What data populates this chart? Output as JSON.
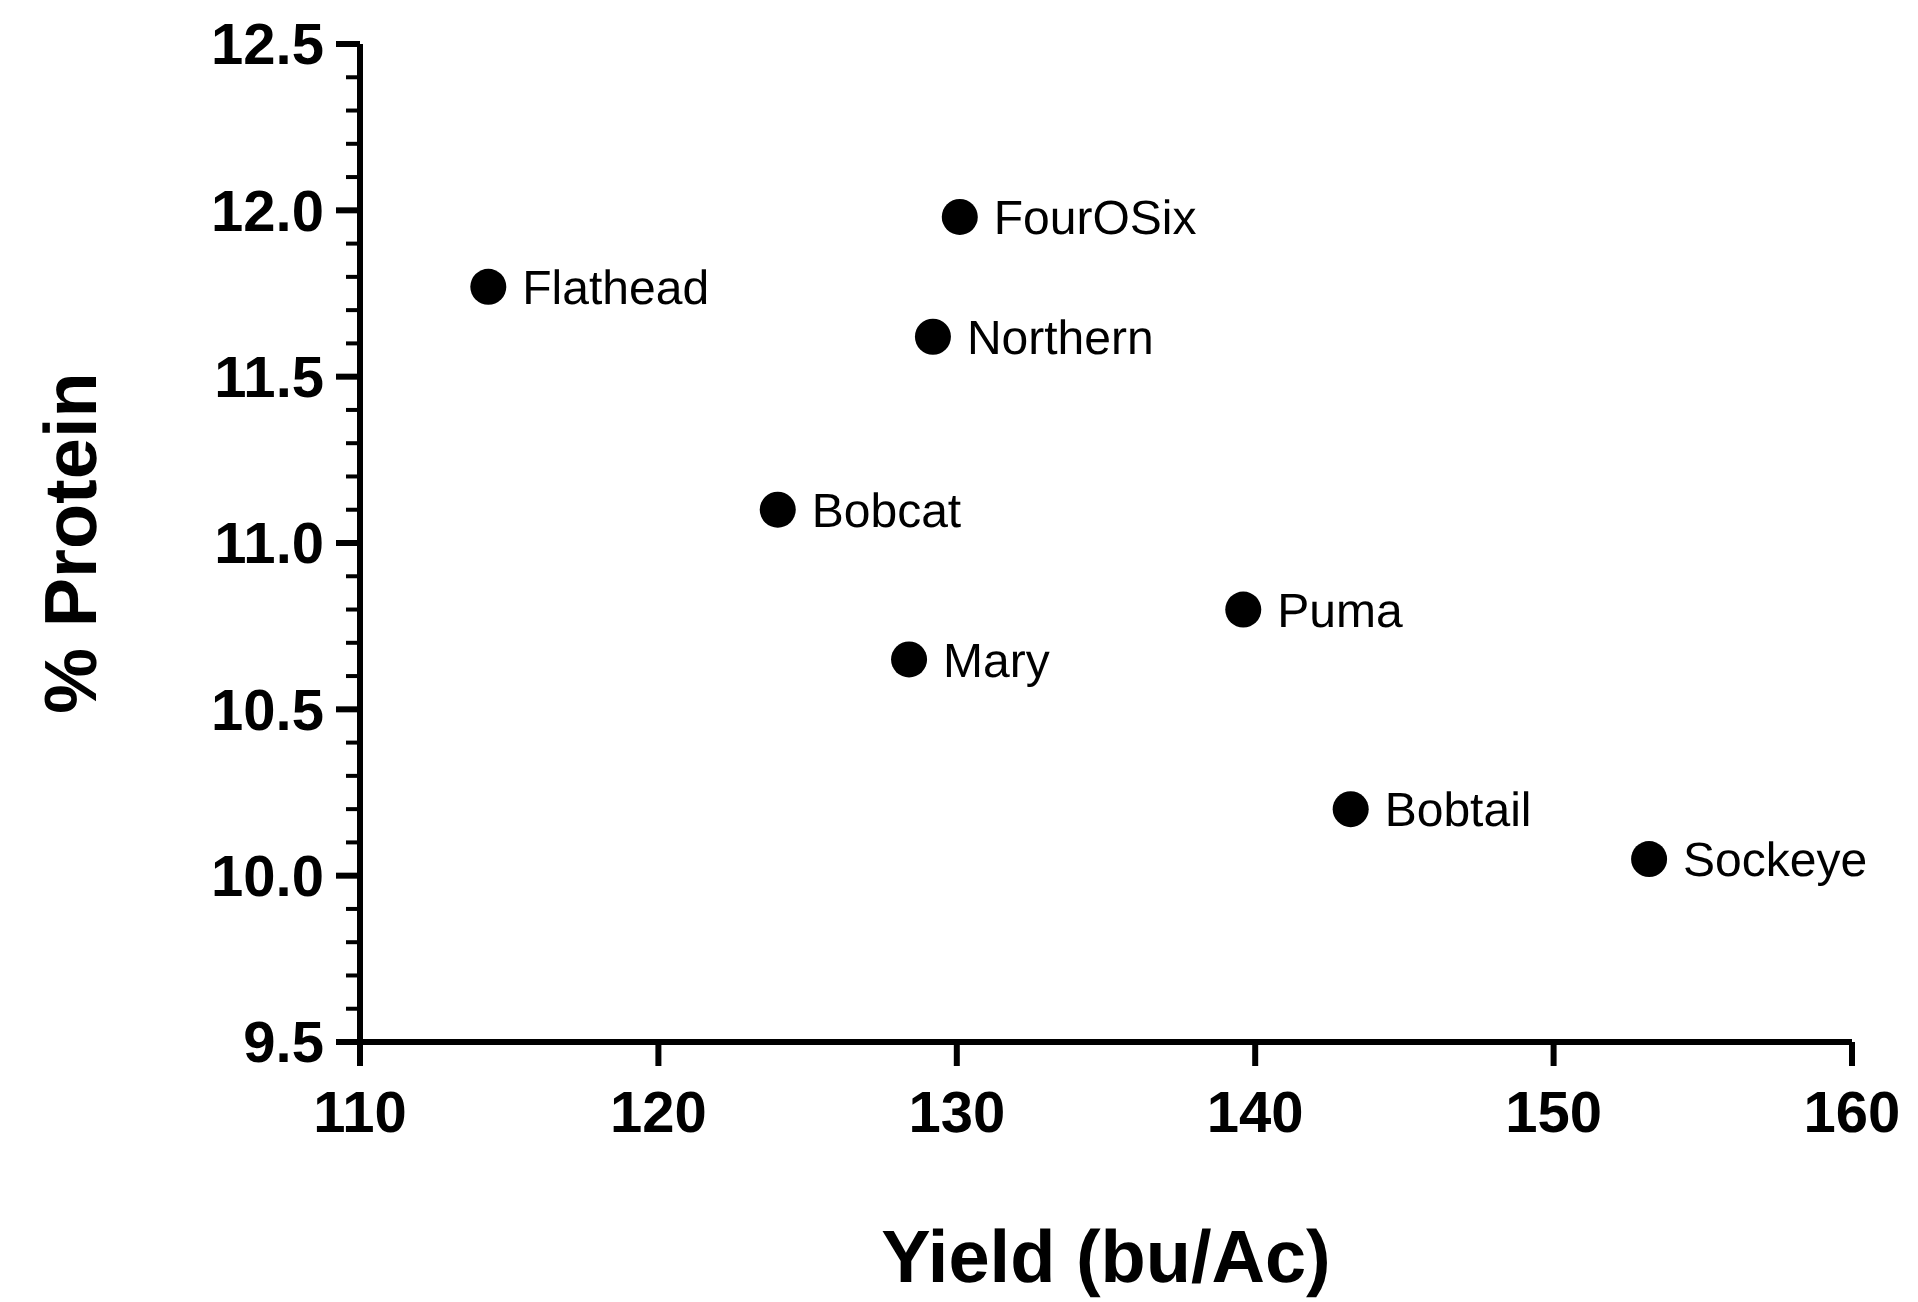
{
  "chart_data": {
    "type": "scatter",
    "xlabel": "Yield (bu/Ac)",
    "ylabel": "% Protein",
    "x": [
      114.3,
      130.1,
      129.2,
      124.0,
      128.4,
      139.6,
      143.2,
      153.2
    ],
    "values": [
      11.77,
      11.98,
      11.62,
      11.1,
      10.65,
      10.8,
      10.2,
      10.05
    ],
    "color": "#000000",
    "marker": "circle",
    "grid": false,
    "xlim": [
      110,
      160
    ],
    "xticks": [
      110,
      120,
      130,
      140,
      150,
      160
    ],
    "ylim": [
      9.5,
      12.5
    ],
    "yticks": [
      9.5,
      {
        "value": 9.6,
        "label": null
      },
      {
        "value": 9.7,
        "label": null
      },
      {
        "value": 9.8,
        "label": null
      },
      {
        "value": 9.9,
        "label": null
      },
      "10.0",
      {
        "value": 10.1,
        "label": null
      },
      {
        "value": 10.2,
        "label": null
      },
      {
        "value": 10.3,
        "label": null
      },
      {
        "value": 10.4,
        "label": null
      },
      10.5,
      {
        "value": 10.6,
        "label": null
      },
      {
        "value": 10.7,
        "label": null
      },
      {
        "value": 10.8,
        "label": null
      },
      {
        "value": 10.9,
        "label": null
      },
      "11.0",
      {
        "value": 11.1,
        "label": null
      },
      {
        "value": 11.2,
        "label": null
      },
      {
        "value": 11.3,
        "label": null
      },
      {
        "value": 11.4,
        "label": null
      },
      11.5,
      {
        "value": 11.6,
        "label": null
      },
      {
        "value": 11.7,
        "label": null
      },
      {
        "value": 11.8,
        "label": null
      },
      {
        "value": 11.9,
        "label": null
      },
      "12.0",
      {
        "value": 12.1,
        "label": null
      },
      {
        "value": 12.2,
        "label": null
      },
      {
        "value": 12.3,
        "label": null
      },
      {
        "value": 12.4,
        "label": null
      },
      12.5
    ],
    "annotations": [
      {
        "text": "Flathead",
        "x": 114.3,
        "y": 11.77
      },
      {
        "text": "FourOSix",
        "x": 130.1,
        "y": 11.98
      },
      {
        "text": "Northern",
        "x": 129.2,
        "y": 11.62
      },
      {
        "text": "Bobcat",
        "x": 124.0,
        "y": 11.1
      },
      {
        "text": "Mary",
        "x": 128.4,
        "y": 10.65
      },
      {
        "text": "Puma",
        "x": 139.6,
        "y": 10.8
      },
      {
        "text": "Bobtail",
        "x": 143.2,
        "y": 10.2
      },
      {
        "text": "Sockeye",
        "x": 153.2,
        "y": 10.05
      }
    ]
  }
}
